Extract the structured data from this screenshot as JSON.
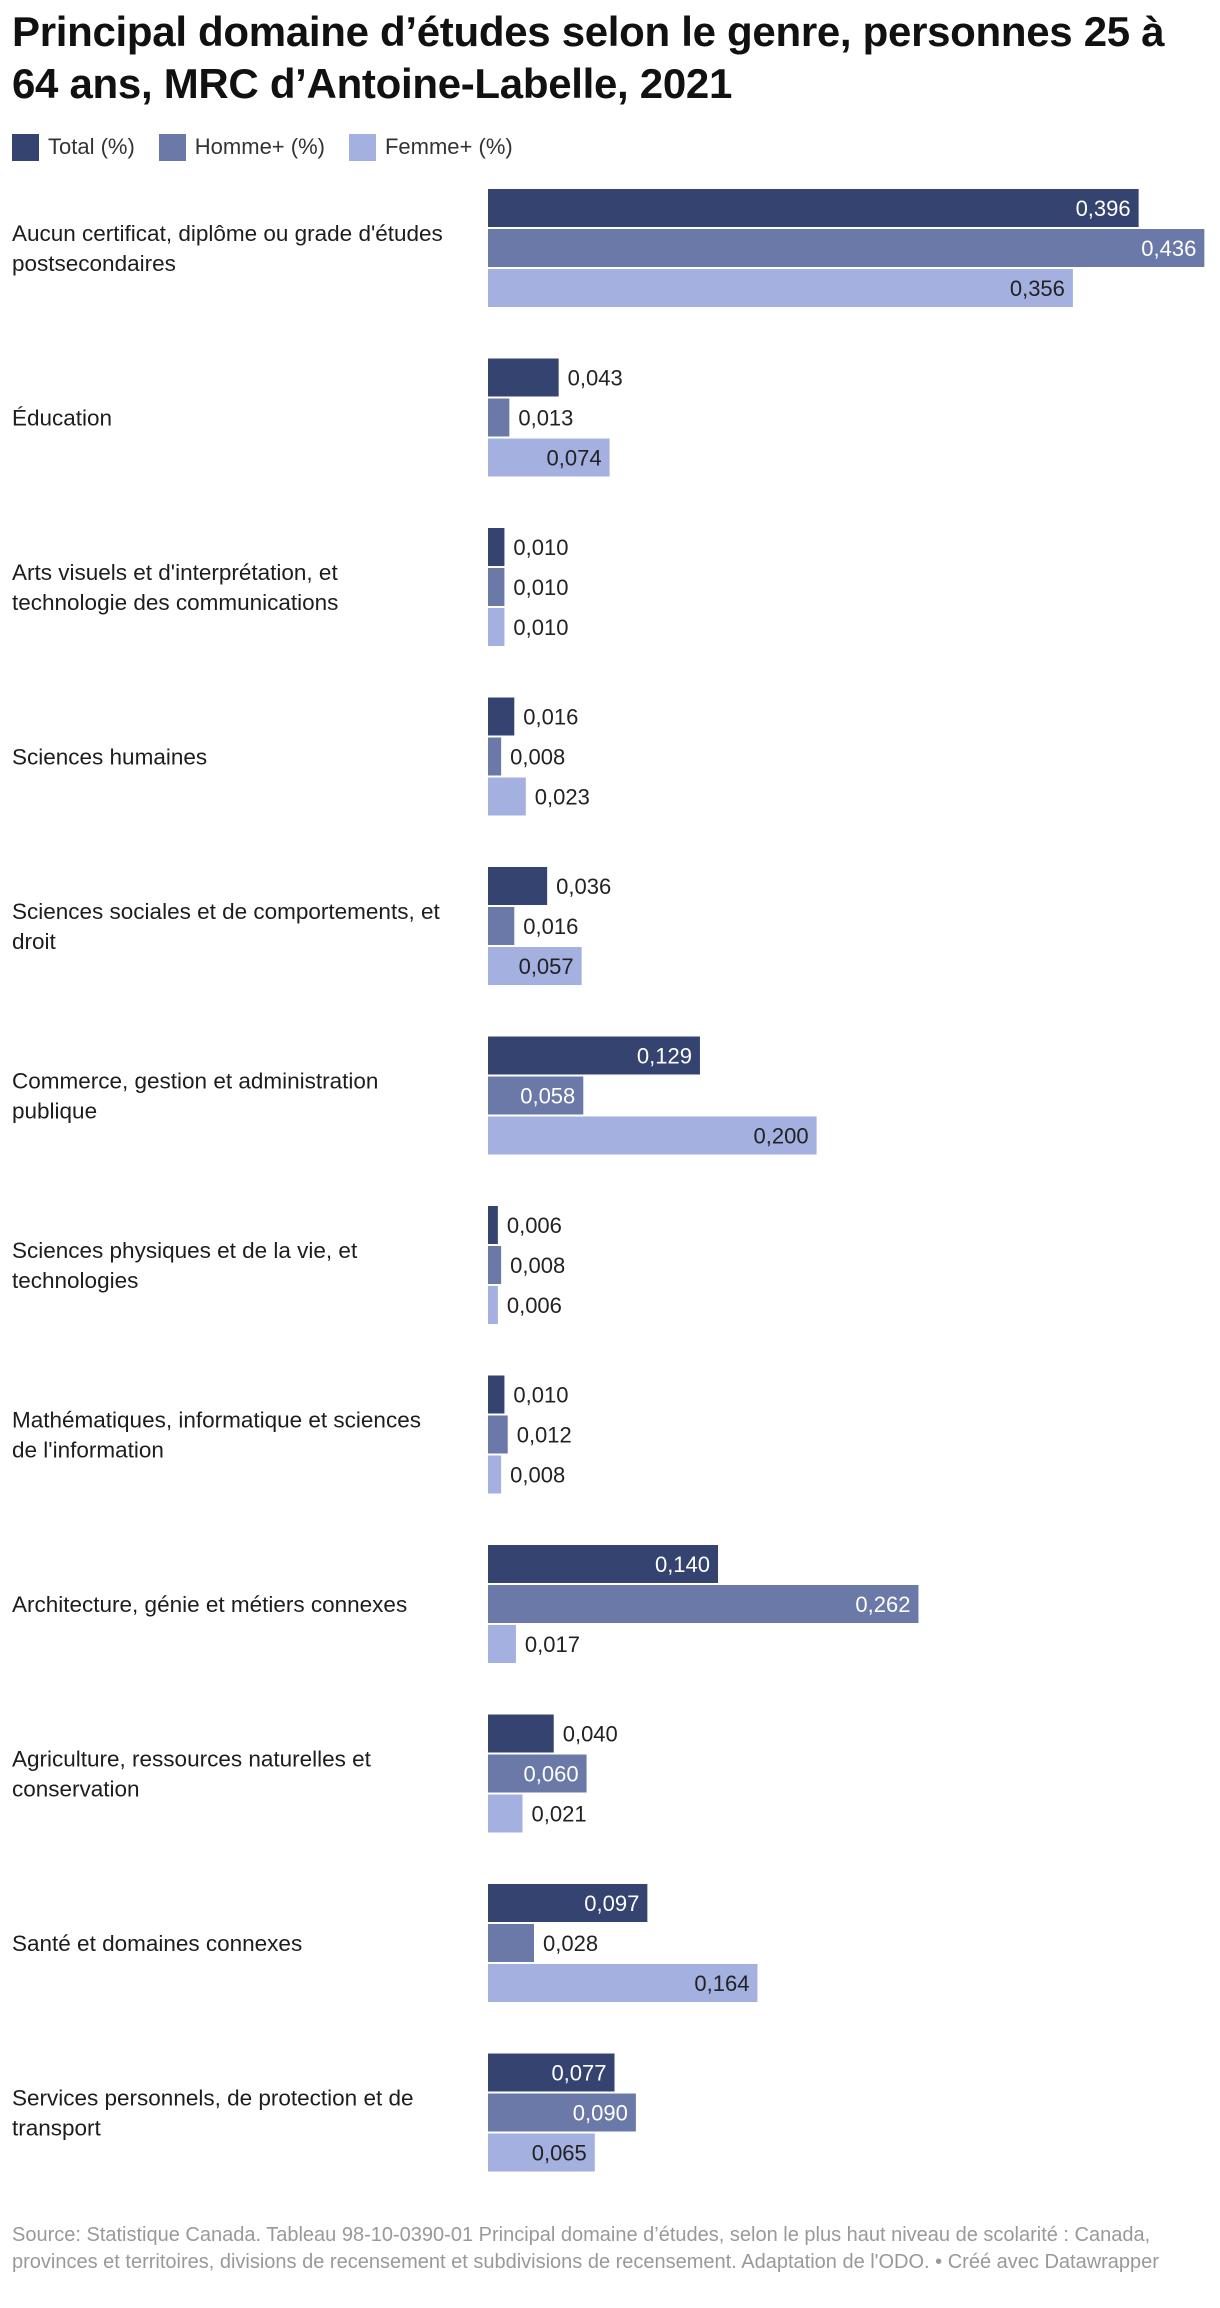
{
  "title": "Principal domaine d’études selon le genre, personnes 25 à 64 ans, MRC d’Antoine-Labelle, 2021",
  "legend": [
    {
      "label": "Total (%)",
      "color": "#344370"
    },
    {
      "label": "Homme+ (%)",
      "color": "#6b79a8"
    },
    {
      "label": "Femme+ (%)",
      "color": "#a4b0e0"
    }
  ],
  "source": "Source: Statistique Canada. Tableau 98-10-0390-01 Principal domaine d’études, selon le plus haut niveau de scolarité : Canada, provinces et territoires, divisions de recensement et subdivisions de recensement. Adaptation de l'ODO. • Créé avec Datawrapper",
  "chart_data": {
    "type": "bar",
    "orientation": "horizontal",
    "title": "Principal domaine d’études selon le genre, personnes 25 à 64 ans, MRC d’Antoine-Labelle, 2021",
    "categories": [
      [
        "Aucun certificat, diplôme ou grade d'études",
        "postsecondaires"
      ],
      [
        "Éducation"
      ],
      [
        "Arts visuels et d'interprétation, et",
        "technologie des communications"
      ],
      [
        "Sciences humaines"
      ],
      [
        "Sciences sociales et de comportements, et",
        "droit"
      ],
      [
        "Commerce, gestion et administration",
        "publique"
      ],
      [
        "Sciences physiques et de la vie, et",
        "technologies"
      ],
      [
        "Mathématiques, informatique et sciences",
        "de l'information"
      ],
      [
        "Architecture, génie et métiers connexes"
      ],
      [
        "Agriculture, ressources naturelles et",
        "conservation"
      ],
      [
        "Santé et domaines connexes"
      ],
      [
        "Services personnels, de protection et de",
        "transport"
      ]
    ],
    "series": [
      {
        "name": "Total (%)",
        "color": "#344370",
        "values": [
          0.396,
          0.043,
          0.01,
          0.016,
          0.036,
          0.129,
          0.006,
          0.01,
          0.14,
          0.04,
          0.097,
          0.077
        ]
      },
      {
        "name": "Homme+ (%)",
        "color": "#6b79a8",
        "values": [
          0.436,
          0.013,
          0.01,
          0.008,
          0.016,
          0.058,
          0.008,
          0.012,
          0.262,
          0.06,
          0.028,
          0.09
        ]
      },
      {
        "name": "Femme+ (%)",
        "color": "#a4b0e0",
        "values": [
          0.356,
          0.074,
          0.01,
          0.023,
          0.057,
          0.2,
          0.006,
          0.008,
          0.017,
          0.021,
          0.164,
          0.065
        ]
      }
    ],
    "value_labels": [
      [
        "0,396",
        "0,043",
        "0,010",
        "0,016",
        "0,036",
        "0,129",
        "0,006",
        "0,010",
        "0,140",
        "0,040",
        "0,097",
        "0,077"
      ],
      [
        "0,436",
        "0,013",
        "0,010",
        "0,008",
        "0,016",
        "0,058",
        "0,008",
        "0,012",
        "0,262",
        "0,060",
        "0,028",
        "0,090"
      ],
      [
        "0,356",
        "0,074",
        "0,010",
        "0,023",
        "0,057",
        "0,200",
        "0,006",
        "0,008",
        "0,017",
        "0,021",
        "0,164",
        "0,065"
      ]
    ],
    "xlim": [
      0,
      0.436
    ],
    "xlabel": "",
    "ylabel": ""
  }
}
